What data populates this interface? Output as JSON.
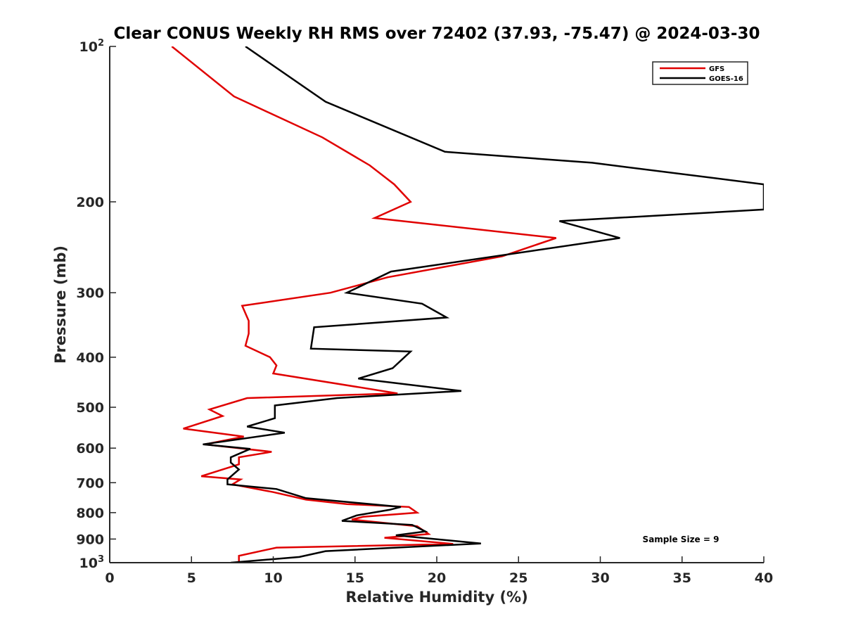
{
  "chart_data": {
    "type": "line",
    "title": "Clear CONUS Weekly RH RMS over 72402 (37.93, -75.47) @ 2024-03-30",
    "xlabel": "Relative Humidity (%)",
    "ylabel": "Pressure (mb)",
    "xlim": [
      0,
      40
    ],
    "ylim": [
      100,
      1000
    ],
    "yscale": "log",
    "y_reversed": true,
    "x_ticks": [
      0,
      5,
      10,
      15,
      20,
      25,
      30,
      35,
      40
    ],
    "x_tick_labels": [
      "0",
      "5",
      "10",
      "15",
      "20",
      "25",
      "30",
      "35",
      "40"
    ],
    "y_ticks": [
      100,
      200,
      300,
      400,
      500,
      600,
      700,
      800,
      900,
      1000
    ],
    "y_tick_labels": [
      {
        "base": "10",
        "exp": "2"
      },
      {
        "text": "200"
      },
      {
        "text": "300"
      },
      {
        "text": "400"
      },
      {
        "text": "500"
      },
      {
        "text": "600"
      },
      {
        "text": "700"
      },
      {
        "text": "800"
      },
      {
        "text": "900"
      },
      {
        "base": "10",
        "exp": "3"
      }
    ],
    "legend_position": "top-right",
    "annotation": "Sample Size = 9",
    "series": [
      {
        "name": "GFS",
        "color": "#e00000",
        "rh": [
          3.8,
          7.6,
          13.0,
          15.9,
          17.4,
          18.4,
          16.2,
          27.3,
          24.0,
          17.0,
          13.5,
          8.1,
          8.5,
          8.5,
          8.3,
          9.8,
          10.2,
          10.0,
          17.6,
          8.4,
          6.1,
          6.9,
          4.5,
          8.2,
          5.8,
          9.9,
          7.9,
          7.9,
          5.6,
          8.0,
          7.5,
          10.0,
          12.0,
          14.5,
          18.3,
          18.8,
          15.5,
          14.8,
          18.8,
          19.5,
          16.8,
          21.0,
          10.2,
          7.9,
          7.9
        ],
        "pressure": [
          100,
          125,
          150,
          170,
          185,
          200,
          215,
          235,
          255,
          280,
          300,
          318,
          340,
          360,
          380,
          400,
          415,
          430,
          470,
          480,
          505,
          520,
          550,
          570,
          590,
          610,
          625,
          645,
          680,
          690,
          705,
          730,
          755,
          770,
          780,
          800,
          815,
          825,
          850,
          880,
          895,
          920,
          935,
          970,
          995
        ]
      },
      {
        "name": "GOES-16",
        "color": "#000000",
        "rh": [
          8.3,
          13.2,
          20.5,
          29.5,
          40.0,
          40.0,
          27.5,
          31.2,
          17.2,
          14.5,
          19.1,
          20.6,
          12.5,
          12.3,
          18.4,
          17.3,
          15.2,
          21.5,
          13.9,
          10.1,
          10.1,
          8.4,
          10.7,
          5.7,
          8.6,
          7.4,
          7.4,
          7.9,
          7.2,
          7.2,
          10.2,
          12.0,
          17.8,
          17.1,
          15.1,
          14.2,
          18.5,
          19.3,
          17.5,
          22.7,
          13.2,
          11.6,
          7.4
        ],
        "pressure": [
          100,
          128,
          160,
          168,
          185,
          207,
          218,
          235,
          273,
          300,
          315,
          335,
          350,
          385,
          390,
          420,
          440,
          465,
          480,
          496,
          525,
          545,
          560,
          590,
          602,
          625,
          640,
          660,
          690,
          705,
          720,
          750,
          780,
          790,
          810,
          830,
          845,
          870,
          885,
          918,
          950,
          975,
          1000
        ]
      }
    ]
  }
}
